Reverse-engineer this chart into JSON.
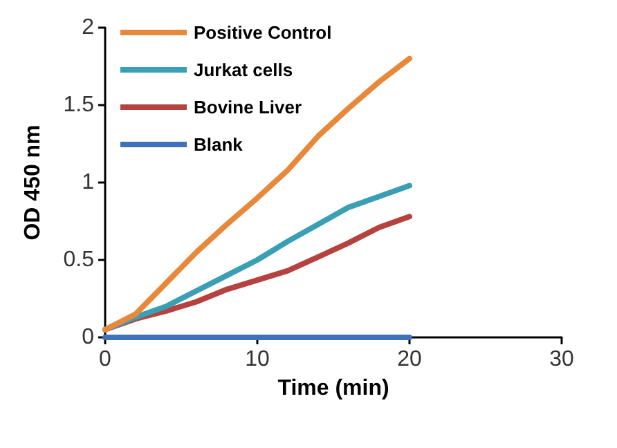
{
  "chart_data": {
    "type": "line",
    "xlabel": "Time (min)",
    "ylabel": "OD 450 nm",
    "x": [
      0,
      2,
      4,
      6,
      8,
      10,
      12,
      14,
      16,
      18,
      20
    ],
    "series": [
      {
        "name": "Positive Control",
        "color": "#e8883a",
        "values": [
          0.05,
          0.15,
          0.35,
          0.55,
          0.73,
          0.9,
          1.08,
          1.3,
          1.48,
          1.65,
          1.8
        ]
      },
      {
        "name": "Jurkat cells",
        "color": "#3a9fb5",
        "values": [
          0.05,
          0.13,
          0.2,
          0.3,
          0.4,
          0.5,
          0.62,
          0.73,
          0.84,
          0.91,
          0.98
        ]
      },
      {
        "name": "Bovine Liver",
        "color": "#b5423f",
        "values": [
          0.05,
          0.12,
          0.17,
          0.23,
          0.31,
          0.37,
          0.43,
          0.52,
          0.61,
          0.71,
          0.78
        ]
      },
      {
        "name": "Blank",
        "color": "#3f72b8",
        "values": [
          0,
          0,
          0,
          0,
          0,
          0,
          0,
          0,
          0,
          0,
          0
        ]
      }
    ],
    "xlim": [
      0,
      30
    ],
    "xticks": [
      0,
      10,
      20,
      30
    ],
    "ylim": [
      0,
      2
    ],
    "yticks": [
      0,
      0.5,
      1,
      1.5,
      2
    ],
    "grid": false,
    "legend": "top left",
    "marker": "none",
    "line_style": "solid"
  }
}
